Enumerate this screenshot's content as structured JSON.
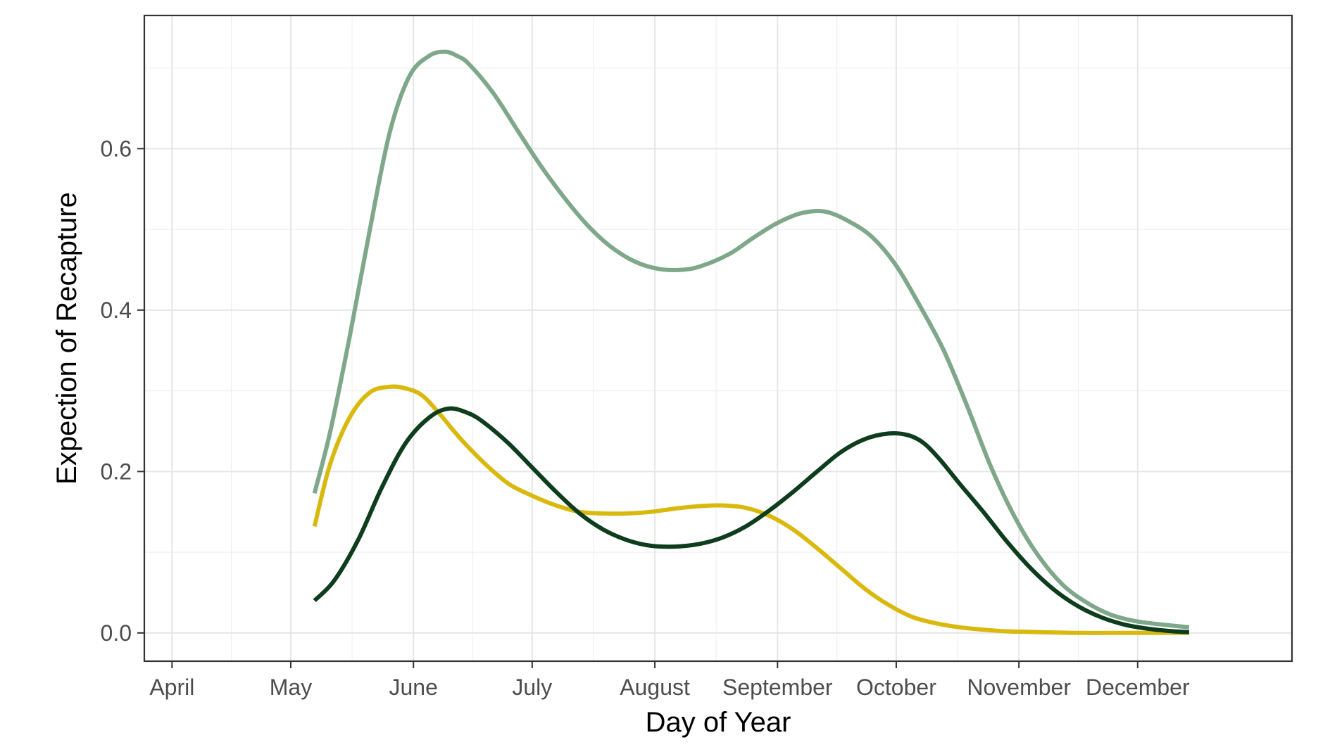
{
  "chart_data": {
    "type": "line",
    "xlabel": "Day of Year",
    "ylabel": "Expection of Recapture",
    "xlim": [
      84,
      374
    ],
    "ylim": [
      -0.035,
      0.765
    ],
    "grid": true,
    "legend": "none",
    "x_ticks": [
      {
        "value": 91,
        "label": "April"
      },
      {
        "value": 121,
        "label": "May"
      },
      {
        "value": 152,
        "label": "June"
      },
      {
        "value": 182,
        "label": "July"
      },
      {
        "value": 213,
        "label": "August"
      },
      {
        "value": 244,
        "label": "September"
      },
      {
        "value": 274,
        "label": "October"
      },
      {
        "value": 305,
        "label": "November"
      },
      {
        "value": 335,
        "label": "December"
      }
    ],
    "y_ticks": [
      {
        "value": 0.0,
        "label": "0.0"
      },
      {
        "value": 0.2,
        "label": "0.2"
      },
      {
        "value": 0.4,
        "label": "0.4"
      },
      {
        "value": 0.6,
        "label": "0.6"
      }
    ],
    "series": [
      {
        "color": "#7fa88a",
        "x": [
          127,
          131,
          136,
          141,
          146,
          151,
          156,
          160,
          163,
          166,
          172,
          178,
          184,
          190,
          196,
          202,
          208,
          214,
          220,
          225,
          232,
          238,
          244,
          250,
          256,
          262,
          268,
          274,
          280,
          286,
          292,
          298,
          304,
          310,
          316,
          322,
          328,
          334,
          340,
          348
        ],
        "y": [
          0.173,
          0.25,
          0.37,
          0.5,
          0.62,
          0.69,
          0.715,
          0.72,
          0.715,
          0.705,
          0.67,
          0.625,
          0.58,
          0.54,
          0.505,
          0.478,
          0.46,
          0.451,
          0.45,
          0.455,
          0.47,
          0.49,
          0.508,
          0.52,
          0.522,
          0.51,
          0.49,
          0.455,
          0.405,
          0.35,
          0.28,
          0.205,
          0.143,
          0.095,
          0.06,
          0.038,
          0.023,
          0.015,
          0.011,
          0.007
        ]
      },
      {
        "color": "#d9b90e",
        "x": [
          127,
          131,
          136,
          141,
          146,
          150,
          154,
          158,
          164,
          170,
          176,
          182,
          188,
          194,
          200,
          206,
          212,
          218,
          224,
          230,
          236,
          242,
          248,
          254,
          260,
          266,
          272,
          278,
          284,
          290,
          296,
          302,
          310,
          320,
          330,
          340,
          348
        ],
        "y": [
          0.132,
          0.21,
          0.268,
          0.298,
          0.305,
          0.303,
          0.295,
          0.275,
          0.24,
          0.21,
          0.185,
          0.17,
          0.158,
          0.15,
          0.148,
          0.148,
          0.15,
          0.154,
          0.157,
          0.158,
          0.155,
          0.145,
          0.128,
          0.105,
          0.08,
          0.055,
          0.035,
          0.02,
          0.012,
          0.007,
          0.004,
          0.002,
          0.001,
          0.0,
          0.0,
          0.0,
          0.0
        ]
      },
      {
        "color": "#0d3d1c",
        "x": [
          127,
          132,
          138,
          144,
          150,
          156,
          161,
          166,
          170,
          176,
          182,
          188,
          194,
          200,
          206,
          212,
          218,
          224,
          230,
          236,
          242,
          248,
          254,
          260,
          266,
          272,
          277,
          281,
          285,
          290,
          296,
          302,
          308,
          314,
          320,
          326,
          332,
          338,
          344,
          348
        ],
        "y": [
          0.04,
          0.065,
          0.115,
          0.18,
          0.235,
          0.267,
          0.278,
          0.272,
          0.26,
          0.235,
          0.205,
          0.175,
          0.148,
          0.128,
          0.115,
          0.108,
          0.107,
          0.11,
          0.118,
          0.132,
          0.152,
          0.175,
          0.2,
          0.224,
          0.24,
          0.247,
          0.245,
          0.235,
          0.215,
          0.185,
          0.15,
          0.113,
          0.08,
          0.053,
          0.033,
          0.019,
          0.01,
          0.005,
          0.002,
          0.001
        ]
      }
    ]
  }
}
